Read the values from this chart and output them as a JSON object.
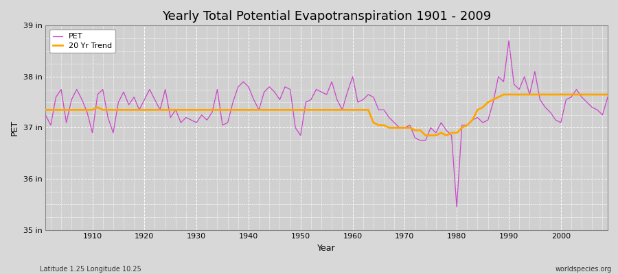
{
  "title": "Yearly Total Potential Evapotranspiration 1901 - 2009",
  "xlabel": "Year",
  "ylabel": "PET",
  "subtitle_left": "Latitude 1.25 Longitude 10.25",
  "subtitle_right": "worldspecies.org",
  "years": [
    1901,
    1902,
    1903,
    1904,
    1905,
    1906,
    1907,
    1908,
    1909,
    1910,
    1911,
    1912,
    1913,
    1914,
    1915,
    1916,
    1917,
    1918,
    1919,
    1920,
    1921,
    1922,
    1923,
    1924,
    1925,
    1926,
    1927,
    1928,
    1929,
    1930,
    1931,
    1932,
    1933,
    1934,
    1935,
    1936,
    1937,
    1938,
    1939,
    1940,
    1941,
    1942,
    1943,
    1944,
    1945,
    1946,
    1947,
    1948,
    1949,
    1950,
    1951,
    1952,
    1953,
    1954,
    1955,
    1956,
    1957,
    1958,
    1959,
    1960,
    1961,
    1962,
    1963,
    1964,
    1965,
    1966,
    1967,
    1968,
    1969,
    1970,
    1971,
    1972,
    1973,
    1974,
    1975,
    1976,
    1977,
    1978,
    1979,
    1980,
    1981,
    1982,
    1983,
    1984,
    1985,
    1986,
    1987,
    1988,
    1989,
    1990,
    1991,
    1992,
    1993,
    1994,
    1995,
    1996,
    1997,
    1998,
    1999,
    2000,
    2001,
    2002,
    2003,
    2004,
    2005,
    2006,
    2007,
    2008,
    2009
  ],
  "pet": [
    37.25,
    37.05,
    37.6,
    37.75,
    37.1,
    37.55,
    37.75,
    37.55,
    37.3,
    36.9,
    37.65,
    37.75,
    37.2,
    36.9,
    37.5,
    37.7,
    37.45,
    37.6,
    37.35,
    37.55,
    37.75,
    37.55,
    37.35,
    37.75,
    37.2,
    37.35,
    37.1,
    37.2,
    37.15,
    37.1,
    37.25,
    37.15,
    37.3,
    37.75,
    37.05,
    37.1,
    37.5,
    37.8,
    37.9,
    37.8,
    37.55,
    37.35,
    37.7,
    37.8,
    37.7,
    37.55,
    37.8,
    37.75,
    37.0,
    36.85,
    37.5,
    37.55,
    37.75,
    37.7,
    37.65,
    37.9,
    37.55,
    37.35,
    37.7,
    38.0,
    37.5,
    37.55,
    37.65,
    37.6,
    37.35,
    37.35,
    37.2,
    37.1,
    37.0,
    37.0,
    37.05,
    36.8,
    36.75,
    36.75,
    37.0,
    36.9,
    37.1,
    36.95,
    36.85,
    35.45,
    37.05,
    37.05,
    37.15,
    37.2,
    37.1,
    37.15,
    37.5,
    38.0,
    37.9,
    38.7,
    37.85,
    37.75,
    38.0,
    37.65,
    38.1,
    37.55,
    37.4,
    37.3,
    37.15,
    37.1,
    37.55,
    37.6,
    37.75,
    37.6,
    37.5,
    37.4,
    37.35,
    37.25,
    37.6
  ],
  "trend": [
    37.35,
    37.35,
    37.35,
    37.35,
    37.35,
    37.35,
    37.35,
    37.35,
    37.35,
    37.35,
    37.4,
    37.35,
    37.35,
    37.35,
    37.35,
    37.35,
    37.35,
    37.35,
    37.35,
    37.35,
    37.35,
    37.35,
    37.35,
    37.35,
    37.35,
    37.35,
    37.35,
    37.35,
    37.35,
    37.35,
    37.35,
    37.35,
    37.35,
    37.35,
    37.35,
    37.35,
    37.35,
    37.35,
    37.35,
    37.35,
    37.35,
    37.35,
    37.35,
    37.35,
    37.35,
    37.35,
    37.35,
    37.35,
    37.35,
    37.35,
    37.35,
    37.35,
    37.35,
    37.35,
    37.35,
    37.35,
    37.35,
    37.35,
    37.35,
    37.35,
    37.35,
    37.35,
    37.35,
    37.1,
    37.05,
    37.05,
    37.0,
    37.0,
    37.0,
    37.0,
    37.0,
    36.95,
    36.95,
    36.85,
    36.85,
    36.85,
    36.9,
    36.85,
    36.9,
    36.9,
    37.0,
    37.05,
    37.15,
    37.35,
    37.4,
    37.5,
    37.55,
    37.6,
    37.65,
    37.65,
    37.65,
    37.65,
    37.65,
    37.65,
    37.65,
    37.65,
    37.65,
    37.65,
    37.65,
    37.65,
    37.65,
    37.65,
    37.65,
    37.65,
    37.65,
    37.65,
    37.65,
    37.65,
    37.65
  ],
  "pet_color": "#cc44cc",
  "trend_color": "#ffa500",
  "bg_color": "#d8d8d8",
  "plot_bg_color": "#d0d0d0",
  "grid_color": "#ffffff",
  "ylim": [
    35.0,
    39.0
  ],
  "yticks": [
    35.0,
    36.0,
    37.0,
    38.0,
    39.0
  ],
  "ytick_labels": [
    "35 in",
    "36 in",
    "37 in",
    "38 in",
    "39 in"
  ],
  "xticks": [
    1910,
    1920,
    1930,
    1940,
    1950,
    1960,
    1970,
    1980,
    1990,
    2000
  ],
  "xlim": [
    1901,
    2009
  ],
  "title_fontsize": 13,
  "label_fontsize": 9,
  "tick_fontsize": 8,
  "legend_fontsize": 8
}
